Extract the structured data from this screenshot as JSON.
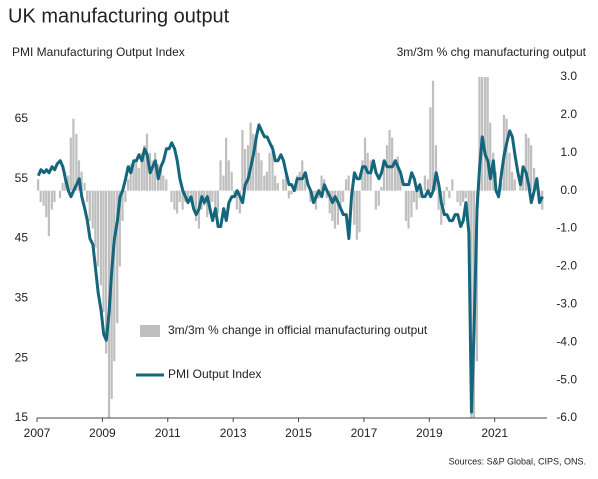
{
  "chart_data": {
    "type": "combo",
    "title": "UK manufacturing output",
    "y_label": "PMI Manufacturing Output Index",
    "y2_label": "3m/3m % chg manufacturing output",
    "source": "Sources: S&P Global, CIPS, ONS.",
    "legend": "lower center",
    "xlim": [
      2007,
      2022.6
    ],
    "xticks": [
      2007,
      2009,
      2011,
      2013,
      2015,
      2017,
      2019,
      2021
    ],
    "ylim": [
      15,
      72
    ],
    "yticks": [
      15,
      25,
      35,
      45,
      55,
      65
    ],
    "y2lim": [
      -6,
      3
    ],
    "y2ticks": [
      {
        "value": 3,
        "label": "3.0"
      },
      {
        "value": 2,
        "label": "2.0"
      },
      {
        "value": 1,
        "label": "1.0"
      },
      {
        "value": 0,
        "label": "0.0"
      },
      {
        "value": -1,
        "label": "-1.0"
      },
      {
        "value": -2,
        "label": "-2.0"
      },
      {
        "value": -3,
        "label": "-3.0"
      },
      {
        "value": -4,
        "label": "-4.0"
      },
      {
        "value": -5,
        "label": "-5.0"
      },
      {
        "value": -6,
        "label": "-6.0"
      }
    ],
    "x": [
      2007,
      2007.08,
      2007.17,
      2007.25,
      2007.33,
      2007.42,
      2007.5,
      2007.58,
      2007.67,
      2007.75,
      2007.83,
      2007.92,
      2008,
      2008.08,
      2008.17,
      2008.25,
      2008.33,
      2008.42,
      2008.5,
      2008.58,
      2008.67,
      2008.75,
      2008.83,
      2008.92,
      2009,
      2009.08,
      2009.17,
      2009.25,
      2009.33,
      2009.42,
      2009.5,
      2009.58,
      2009.67,
      2009.75,
      2009.83,
      2009.92,
      2010,
      2010.08,
      2010.17,
      2010.25,
      2010.33,
      2010.42,
      2010.5,
      2010.58,
      2010.67,
      2010.75,
      2010.83,
      2010.92,
      2011,
      2011.08,
      2011.17,
      2011.25,
      2011.33,
      2011.42,
      2011.5,
      2011.58,
      2011.67,
      2011.75,
      2011.83,
      2011.92,
      2012,
      2012.08,
      2012.17,
      2012.25,
      2012.33,
      2012.42,
      2012.5,
      2012.58,
      2012.67,
      2012.75,
      2012.83,
      2012.92,
      2013,
      2013.08,
      2013.17,
      2013.25,
      2013.33,
      2013.42,
      2013.5,
      2013.58,
      2013.67,
      2013.75,
      2013.83,
      2013.92,
      2014,
      2014.08,
      2014.17,
      2014.25,
      2014.33,
      2014.42,
      2014.5,
      2014.58,
      2014.67,
      2014.75,
      2014.83,
      2014.92,
      2015,
      2015.08,
      2015.17,
      2015.25,
      2015.33,
      2015.42,
      2015.5,
      2015.58,
      2015.67,
      2015.75,
      2015.83,
      2015.92,
      2016,
      2016.08,
      2016.17,
      2016.25,
      2016.33,
      2016.42,
      2016.5,
      2016.58,
      2016.67,
      2016.75,
      2016.83,
      2016.92,
      2017,
      2017.08,
      2017.17,
      2017.25,
      2017.33,
      2017.42,
      2017.5,
      2017.58,
      2017.67,
      2017.75,
      2017.83,
      2017.92,
      2018,
      2018.08,
      2018.17,
      2018.25,
      2018.33,
      2018.42,
      2018.5,
      2018.58,
      2018.67,
      2018.75,
      2018.83,
      2018.92,
      2019,
      2019.08,
      2019.17,
      2019.25,
      2019.33,
      2019.42,
      2019.5,
      2019.58,
      2019.67,
      2019.75,
      2019.83,
      2019.92,
      2020,
      2020.08,
      2020.17,
      2020.25,
      2020.33,
      2020.42,
      2020.5,
      2020.58,
      2020.67,
      2020.75,
      2020.83,
      2020.92,
      2021,
      2021.08,
      2021.17,
      2021.25,
      2021.33,
      2021.42,
      2021.5,
      2021.58,
      2021.67,
      2021.75,
      2021.83,
      2021.92,
      2022,
      2022.08,
      2022.17,
      2022.25,
      2022.33,
      2022.42
    ],
    "series": [
      {
        "name": "3m/3m % change in official manufacturing output",
        "type": "bar",
        "axis": "y2",
        "color": "#bfbfbf",
        "values": [
          0.3,
          -0.3,
          -0.4,
          -0.7,
          -1.2,
          -0.5,
          -0.3,
          0.0,
          -0.2,
          0.2,
          0.5,
          0.4,
          1.4,
          1.9,
          1.5,
          0.8,
          0.5,
          0.2,
          -0.3,
          -0.8,
          -1.0,
          -1.5,
          -2.0,
          -2.5,
          -3.2,
          -4.3,
          -6.0,
          -5.5,
          -4.5,
          -3.5,
          -2.0,
          -0.8,
          -0.3,
          0.3,
          0.7,
          0.8,
          0.8,
          0.6,
          1.0,
          1.2,
          1.5,
          1.0,
          0.8,
          1.0,
          0.7,
          0.6,
          0.4,
          0.3,
          0.0,
          -0.3,
          -0.5,
          -0.6,
          -0.3,
          -0.5,
          -0.3,
          -0.2,
          -0.1,
          -0.5,
          -0.8,
          -1.0,
          -0.5,
          -0.4,
          -0.7,
          -0.6,
          -0.3,
          -0.6,
          -0.6,
          0.8,
          0.4,
          1.4,
          0.8,
          0.5,
          -0.2,
          -0.5,
          -0.6,
          1.6,
          1.1,
          1.2,
          1.8,
          1.5,
          1.3,
          1.0,
          0.8,
          0.4,
          0.5,
          1.0,
          1.2,
          0.4,
          0.2,
          0.0,
          0.3,
          0.4,
          -0.2,
          -0.1,
          0.0,
          0.4,
          0.5,
          0.8,
          0.4,
          0.0,
          -0.3,
          -0.2,
          -0.5,
          -0.2,
          0.4,
          0.3,
          -0.2,
          -0.6,
          -0.8,
          -1.0,
          -0.9,
          -0.5,
          -0.3,
          0.3,
          0.4,
          -0.4,
          -0.9,
          -1.3,
          -1.1,
          0.8,
          1.4,
          1.0,
          0.8,
          0.0,
          -0.5,
          -0.4,
          0.1,
          0.8,
          1.2,
          1.6,
          1.4,
          0.8,
          0.9,
          0.5,
          0.0,
          -0.8,
          -1.0,
          -0.7,
          -0.3,
          -0.5,
          -0.2,
          0.0,
          0.4,
          0.3,
          2.2,
          2.9,
          1.2,
          -0.5,
          -0.9,
          -0.4,
          0.1,
          -0.2,
          0.3,
          0.0,
          -0.3,
          -0.4,
          -0.3,
          -0.2,
          -1.2,
          -6.0,
          -6.0,
          -4.5,
          3.0,
          3.0,
          3.0,
          3.0,
          1.8,
          1.0,
          0.5,
          -0.2,
          0.2,
          2.0,
          1.9,
          1.0,
          0.5,
          0.3,
          0.0,
          0.3,
          0.6,
          1.5,
          1.4,
          1.2,
          0.6,
          0.1,
          -0.2,
          -0.5
        ]
      },
      {
        "name": "PMI Output Index",
        "type": "line",
        "axis": "y",
        "color": "#15657d",
        "values": [
          55.5,
          56.5,
          56,
          56.5,
          56,
          57,
          56.5,
          57.5,
          58,
          57,
          55,
          53,
          52,
          53,
          54,
          55,
          52,
          50,
          48,
          45,
          44,
          40,
          36,
          33,
          29,
          28,
          33,
          40,
          45,
          48,
          52,
          53,
          55,
          57,
          56,
          58,
          58,
          59,
          58,
          60,
          59,
          56,
          57,
          58,
          55,
          57,
          58,
          60,
          60,
          61,
          60,
          58,
          55,
          53,
          52,
          51,
          52,
          50,
          49,
          50,
          52,
          51,
          52,
          50,
          48,
          50,
          47,
          47,
          50,
          48,
          51,
          52,
          52,
          53,
          52,
          51,
          54,
          55,
          57,
          59,
          62,
          64,
          63,
          62,
          62,
          61,
          60,
          58,
          58,
          59,
          58,
          56,
          54,
          54,
          53,
          55,
          55,
          55,
          56,
          54,
          53,
          51,
          52,
          53,
          52,
          54,
          53,
          52,
          51,
          52,
          51,
          50,
          49,
          49,
          45,
          52,
          56,
          55,
          55,
          57,
          57,
          56,
          56,
          58,
          56,
          55,
          56,
          58,
          57,
          57,
          57,
          58,
          57,
          56,
          54,
          54,
          54,
          56,
          55,
          53,
          54,
          52,
          52,
          53,
          52,
          53,
          56,
          54,
          51,
          49,
          49,
          48,
          48,
          49,
          49,
          47,
          48,
          51,
          46,
          16,
          30,
          50,
          57,
          62,
          59,
          58,
          55,
          58,
          53,
          52,
          56,
          59,
          61,
          63,
          62,
          59,
          56,
          54,
          57,
          56,
          54,
          51,
          53,
          55,
          51,
          52
        ]
      }
    ]
  }
}
